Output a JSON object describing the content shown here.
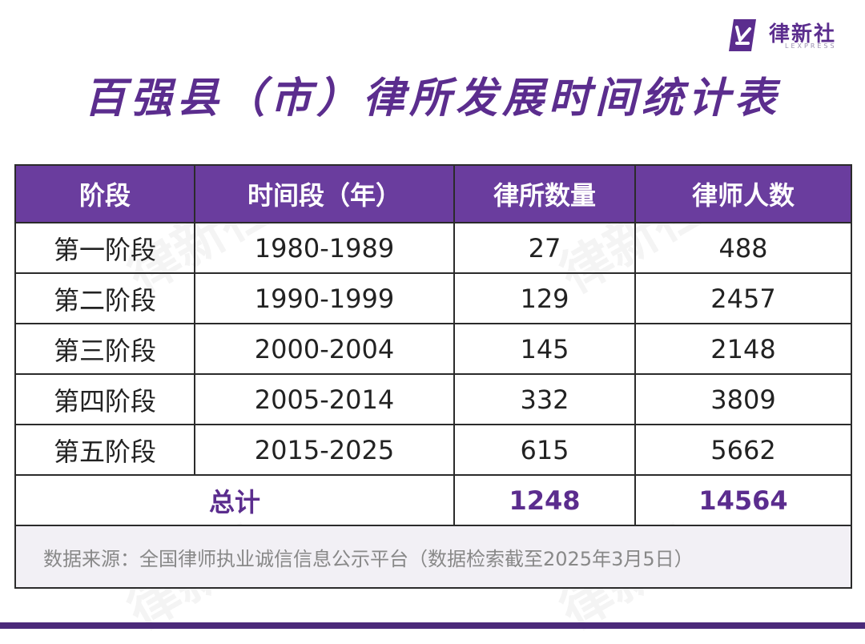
{
  "logo": {
    "name": "律新社",
    "subtitle": "LEXPRESS"
  },
  "title": "百强县（市）律所发展时间统计表",
  "watermark_text": "律新社",
  "table": {
    "headers": [
      "阶段",
      "时间段（年）",
      "律所数量",
      "律师人数"
    ],
    "rows": [
      [
        "第一阶段",
        "1980-1989",
        "27",
        "488"
      ],
      [
        "第二阶段",
        "1990-1999",
        "129",
        "2457"
      ],
      [
        "第三阶段",
        "2000-2004",
        "145",
        "2148"
      ],
      [
        "第四阶段",
        "2005-2014",
        "332",
        "3809"
      ],
      [
        "第五阶段",
        "2015-2025",
        "615",
        "5662"
      ]
    ],
    "total": {
      "label": "总计",
      "firms": "1248",
      "lawyers": "14564"
    },
    "source": "数据来源：全国律师执业诚信信息公示平台（数据检索截至2025年3月5日）"
  },
  "colors": {
    "header_bg": "#6a3d9e",
    "accent": "#5b2d8e",
    "bottom_bar": "#4b2a7a"
  }
}
